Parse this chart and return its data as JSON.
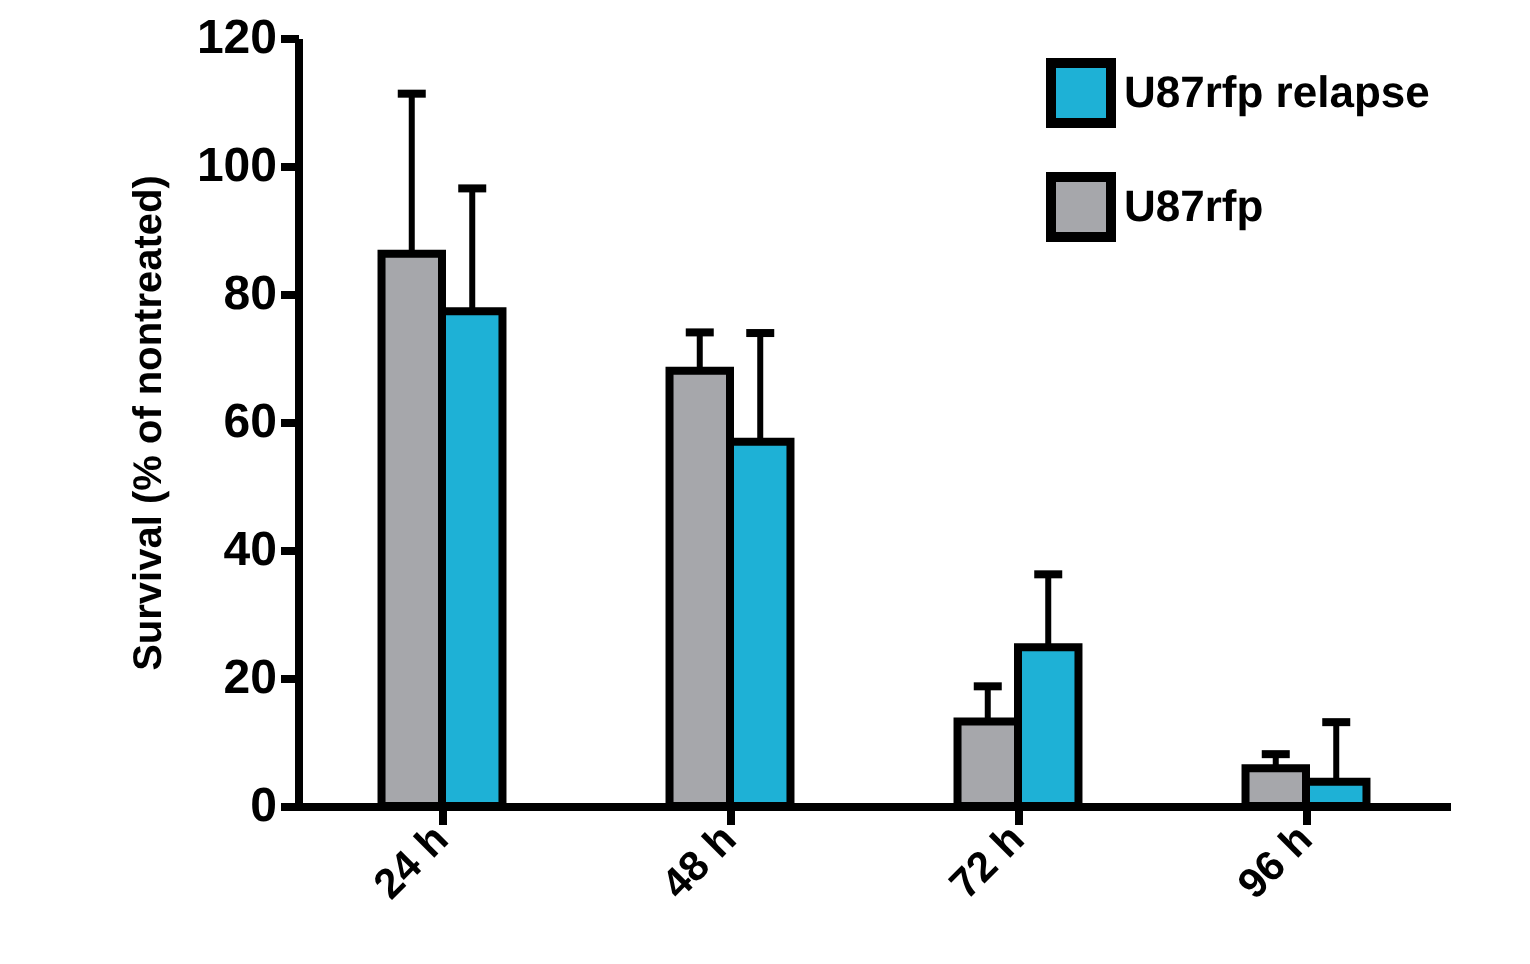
{
  "chart_data": {
    "type": "bar",
    "ylabel": "Survival (% of nontreated)",
    "categories": [
      "24 h",
      "48 h",
      "72 h",
      "96 h"
    ],
    "series": [
      {
        "name": "U87rfp",
        "color": "#a6a7ab",
        "values": [
          86.3,
          68,
          13.2,
          5.9
        ],
        "errors": [
          25,
          6,
          5.5,
          2.2
        ]
      },
      {
        "name": "U87rfp relapse",
        "color": "#1eb1d6",
        "values": [
          77.3,
          56.9,
          24.8,
          3.8
        ],
        "errors": [
          19.2,
          17,
          11.4,
          9.3
        ]
      }
    ],
    "ylim": [
      0,
      120
    ],
    "yticks": [
      0,
      20,
      40,
      60,
      80,
      100,
      120
    ],
    "grid": false,
    "legend": "top right"
  }
}
